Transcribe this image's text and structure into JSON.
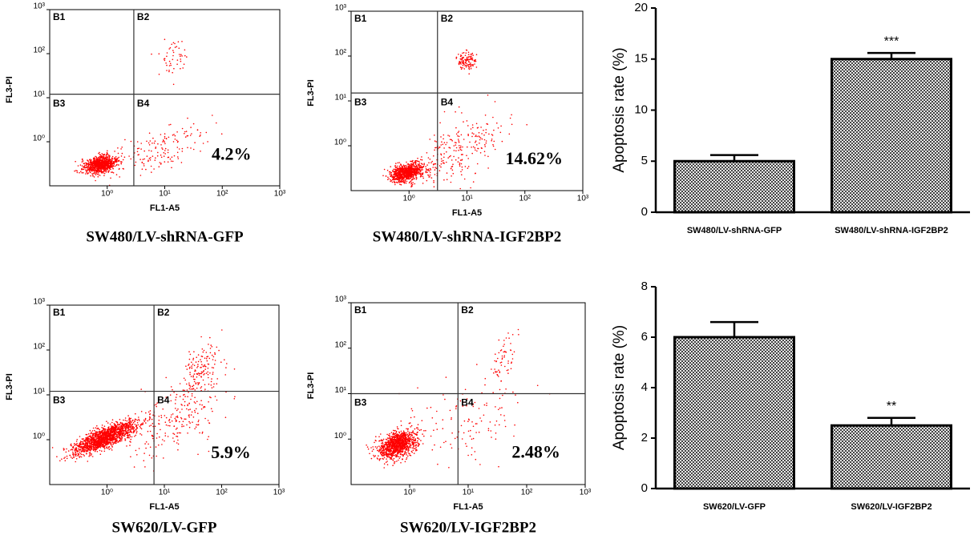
{
  "chart_data": [
    {
      "type": "scatter",
      "title": "SW480/LV-shRNA-GFP",
      "xlabel": "FL1-A5",
      "ylabel": "FL3-PI",
      "log_x": true,
      "log_y": true,
      "xlim": [
        0.1,
        1000
      ],
      "ylim": [
        0.1,
        1000
      ],
      "xticks": [
        {
          "value": 1,
          "label": "10⁰"
        },
        {
          "value": 10,
          "label": "10¹"
        },
        {
          "value": 100,
          "label": "10²"
        },
        {
          "value": 1000,
          "label": "10³"
        }
      ],
      "yticks": [
        {
          "value": 1,
          "label": "10⁰"
        },
        {
          "value": 10,
          "label": "10¹"
        },
        {
          "value": 100,
          "label": "10²"
        },
        {
          "value": 1000,
          "label": "10³"
        }
      ],
      "quadrants": [
        "B1",
        "B2",
        "B3",
        "B4"
      ],
      "gate_x": 2.9,
      "gate_y": 12,
      "annotation": "4.2%",
      "color": "#ff0000"
    },
    {
      "type": "scatter",
      "title": "SW480/LV-shRNA-IGF2BP2",
      "xlabel": "FL1-A5",
      "ylabel": "FL3-PI",
      "log_x": true,
      "log_y": true,
      "xlim": [
        0.1,
        1000
      ],
      "ylim": [
        0.1,
        1000
      ],
      "xticks": [
        {
          "value": 1,
          "label": "10⁰"
        },
        {
          "value": 10,
          "label": "10¹"
        },
        {
          "value": 100,
          "label": "10²"
        },
        {
          "value": 1000,
          "label": "10³"
        }
      ],
      "yticks": [
        {
          "value": 1,
          "label": "10⁰"
        },
        {
          "value": 10,
          "label": "10¹"
        },
        {
          "value": 100,
          "label": "10²"
        },
        {
          "value": 1000,
          "label": "10³"
        }
      ],
      "quadrants": [
        "B1",
        "B2",
        "B3",
        "B4"
      ],
      "gate_x": 3.1,
      "gate_y": 15,
      "annotation": "14.62%",
      "color": "#ff0000"
    },
    {
      "type": "bar",
      "ylabel": "Apoptosis rate (%)",
      "categories": [
        "SW480/LV-shRNA-GFP",
        "SW480/LV-shRNA-IGF2BP2"
      ],
      "values": [
        5,
        15
      ],
      "errors": [
        0.6,
        0.6
      ],
      "annotations": [
        null,
        "***"
      ],
      "ylim": [
        0,
        20
      ],
      "yticks": [
        0,
        5,
        10,
        15,
        20
      ],
      "color": "#8c8c8c"
    },
    {
      "type": "scatter",
      "title": "SW620/LV-GFP",
      "xlabel": "FL1-A5",
      "ylabel": "FL3-PI",
      "log_x": true,
      "log_y": true,
      "xlim": [
        0.1,
        1000
      ],
      "ylim": [
        0.1,
        1000
      ],
      "xticks": [
        {
          "value": 1,
          "label": "10⁰"
        },
        {
          "value": 10,
          "label": "10¹"
        },
        {
          "value": 100,
          "label": "10²"
        },
        {
          "value": 1000,
          "label": "10³"
        }
      ],
      "yticks": [
        {
          "value": 1,
          "label": "10⁰"
        },
        {
          "value": 10,
          "label": "10¹"
        },
        {
          "value": 100,
          "label": "10²"
        },
        {
          "value": 1000,
          "label": "10³"
        }
      ],
      "quadrants": [
        "B1",
        "B2",
        "B3",
        "B4"
      ],
      "gate_x": 6.6,
      "gate_y": 12,
      "annotation": "5.9%",
      "color": "#ff0000"
    },
    {
      "type": "scatter",
      "title": "SW620/LV-IGF2BP2",
      "xlabel": "FL1-A5",
      "ylabel": "FL3-PI",
      "log_x": true,
      "log_y": true,
      "xlim": [
        0.1,
        1000
      ],
      "ylim": [
        0.1,
        1000
      ],
      "xticks": [
        {
          "value": 1,
          "label": "10⁰"
        },
        {
          "value": 10,
          "label": "10¹"
        },
        {
          "value": 100,
          "label": "10²"
        },
        {
          "value": 1000,
          "label": "10³"
        }
      ],
      "yticks": [
        {
          "value": 1,
          "label": "10⁰"
        },
        {
          "value": 10,
          "label": "10¹"
        },
        {
          "value": 100,
          "label": "10²"
        },
        {
          "value": 1000,
          "label": "10³"
        }
      ],
      "quadrants": [
        "B1",
        "B2",
        "B3",
        "B4"
      ],
      "gate_x": 6.7,
      "gate_y": 10,
      "annotation": "2.48%",
      "color": "#ff0000"
    },
    {
      "type": "bar",
      "ylabel": "Apoptosis rate (%)",
      "categories": [
        "SW620/LV-GFP",
        "SW620/LV-IGF2BP2"
      ],
      "values": [
        6,
        2.5
      ],
      "errors": [
        0.6,
        0.3
      ],
      "annotations": [
        null,
        "**"
      ],
      "ylim": [
        0,
        8
      ],
      "yticks": [
        0,
        2,
        4,
        6,
        8
      ],
      "color": "#8c8c8c"
    }
  ]
}
